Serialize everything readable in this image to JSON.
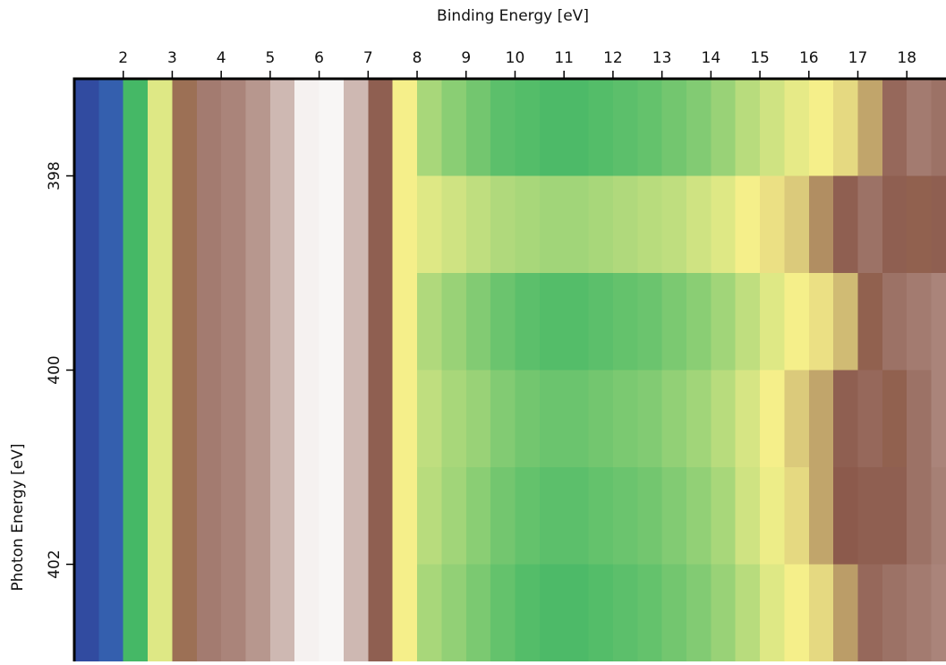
{
  "chart_data": {
    "type": "heatmap",
    "xlabel": "Binding Energy [eV]",
    "ylabel": "Photon Energy [eV]",
    "xlim": [
      1,
      18.8
    ],
    "ylim": [
      397,
      403
    ],
    "y_inverted": true,
    "x_axis_position": "top",
    "xticks": [
      2,
      3,
      4,
      5,
      6,
      7,
      8,
      9,
      10,
      11,
      12,
      13,
      14,
      15,
      16,
      17,
      18
    ],
    "yticks": [
      398,
      400,
      402
    ],
    "x_edges": [
      1,
      1.5,
      2,
      2.5,
      3,
      3.5,
      4,
      4.5,
      5,
      5.5,
      6,
      6.5,
      7,
      7.5,
      8,
      8.5,
      9,
      9.5,
      10,
      10.5,
      11,
      11.5,
      12,
      12.5,
      13,
      13.5,
      14,
      14.5,
      15,
      15.5,
      16,
      16.5,
      17,
      17.5,
      18,
      18.5,
      19
    ],
    "y_edges": [
      397,
      398,
      399,
      400,
      401,
      402,
      403
    ],
    "zlim": [
      0,
      1
    ],
    "colorscale": [
      [
        0,
        "#2f3d96"
      ],
      [
        0.12,
        "#3a8fd0"
      ],
      [
        0.22,
        "#45b866"
      ],
      [
        0.45,
        "#f5ef8a"
      ],
      [
        0.65,
        "#8c5a4c"
      ],
      [
        1,
        "#ffffff"
      ]
    ],
    "z": [
      [
        0.02,
        0.05,
        0.22,
        0.42,
        0.62,
        0.72,
        0.74,
        0.78,
        0.85,
        0.97,
        0.98,
        0.85,
        0.66,
        0.45,
        0.35,
        0.31,
        0.28,
        0.25,
        0.24,
        0.23,
        0.23,
        0.24,
        0.25,
        0.26,
        0.28,
        0.3,
        0.33,
        0.37,
        0.4,
        0.43,
        0.45,
        0.48,
        0.55,
        0.68,
        0.72,
        0.7
      ],
      [
        0.02,
        0.05,
        0.22,
        0.42,
        0.62,
        0.72,
        0.74,
        0.78,
        0.85,
        0.97,
        0.98,
        0.85,
        0.66,
        0.45,
        0.42,
        0.4,
        0.38,
        0.36,
        0.35,
        0.34,
        0.34,
        0.35,
        0.36,
        0.37,
        0.38,
        0.4,
        0.42,
        0.45,
        0.47,
        0.5,
        0.58,
        0.66,
        0.7,
        0.66,
        0.64,
        0.66
      ],
      [
        0.02,
        0.05,
        0.22,
        0.42,
        0.62,
        0.72,
        0.74,
        0.78,
        0.85,
        0.97,
        0.98,
        0.85,
        0.66,
        0.45,
        0.36,
        0.33,
        0.3,
        0.27,
        0.25,
        0.24,
        0.24,
        0.25,
        0.26,
        0.27,
        0.29,
        0.31,
        0.34,
        0.38,
        0.42,
        0.45,
        0.47,
        0.52,
        0.64,
        0.7,
        0.72,
        0.74
      ],
      [
        0.02,
        0.05,
        0.22,
        0.42,
        0.62,
        0.72,
        0.74,
        0.78,
        0.85,
        0.97,
        0.98,
        0.85,
        0.66,
        0.45,
        0.38,
        0.35,
        0.33,
        0.3,
        0.28,
        0.27,
        0.27,
        0.28,
        0.29,
        0.3,
        0.32,
        0.34,
        0.37,
        0.41,
        0.45,
        0.5,
        0.55,
        0.66,
        0.68,
        0.64,
        0.7,
        0.74
      ],
      [
        0.02,
        0.05,
        0.22,
        0.42,
        0.62,
        0.72,
        0.74,
        0.78,
        0.85,
        0.97,
        0.98,
        0.85,
        0.66,
        0.45,
        0.37,
        0.34,
        0.31,
        0.28,
        0.26,
        0.25,
        0.25,
        0.26,
        0.27,
        0.28,
        0.3,
        0.32,
        0.35,
        0.4,
        0.44,
        0.48,
        0.55,
        0.65,
        0.66,
        0.66,
        0.7,
        0.73
      ],
      [
        0.02,
        0.05,
        0.22,
        0.42,
        0.62,
        0.72,
        0.74,
        0.78,
        0.85,
        0.97,
        0.98,
        0.85,
        0.66,
        0.45,
        0.35,
        0.32,
        0.29,
        0.26,
        0.24,
        0.23,
        0.23,
        0.24,
        0.25,
        0.26,
        0.28,
        0.3,
        0.33,
        0.37,
        0.42,
        0.45,
        0.48,
        0.56,
        0.68,
        0.7,
        0.72,
        0.74
      ]
    ]
  }
}
